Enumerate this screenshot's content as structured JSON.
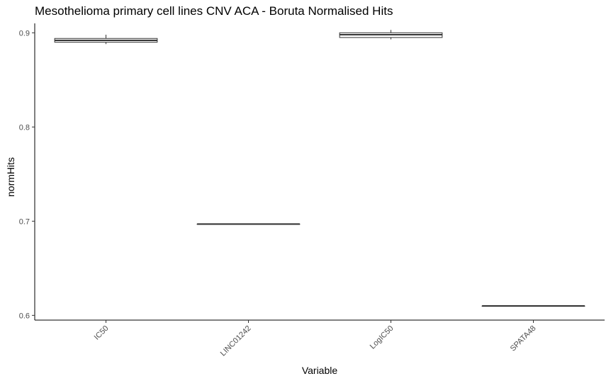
{
  "chart_data": {
    "type": "boxplot",
    "title": "Mesothelioma primary cell lines CNV ACA - Boruta Normalised Hits",
    "xlabel": "Variable",
    "ylabel": "normHits",
    "ylim": [
      0.595,
      0.91
    ],
    "yticks": [
      0.6,
      0.7,
      0.8,
      0.9
    ],
    "ytick_labels": [
      "0.6",
      "0.7",
      "0.8",
      "0.9"
    ],
    "categories": [
      "IC50",
      "LINC01242",
      "LogIC50",
      "SPATA48"
    ],
    "boxes": [
      {
        "category": "IC50",
        "whisker_low": 0.888,
        "q1": 0.89,
        "median": 0.892,
        "q3": 0.894,
        "whisker_high": 0.898
      },
      {
        "category": "LINC01242",
        "whisker_low": 0.697,
        "q1": 0.697,
        "median": 0.697,
        "q3": 0.697,
        "whisker_high": 0.697
      },
      {
        "category": "LogIC50",
        "whisker_low": 0.893,
        "q1": 0.895,
        "median": 0.898,
        "q3": 0.9,
        "whisker_high": 0.903
      },
      {
        "category": "SPATA48",
        "whisker_low": 0.61,
        "q1": 0.61,
        "median": 0.61,
        "q3": 0.61,
        "whisker_high": 0.61
      }
    ],
    "grid": false,
    "legend": "none"
  }
}
